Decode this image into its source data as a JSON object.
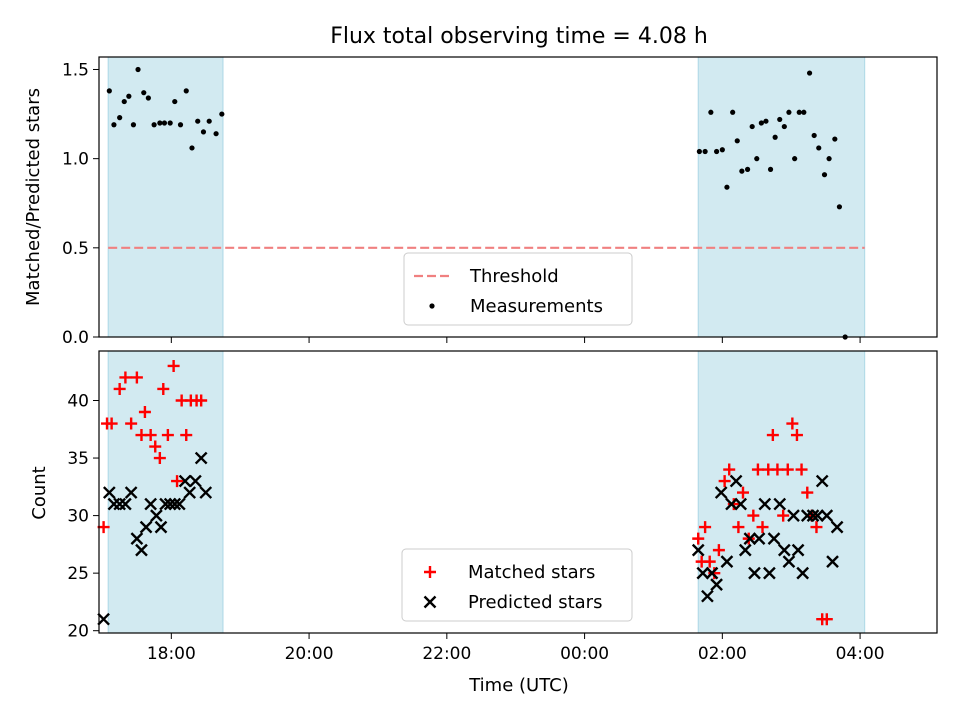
{
  "title": "Flux total observing time = 4.08 h",
  "colors": {
    "band": "#add8e6",
    "threshold": "#f08080",
    "matched": "#ff0000",
    "predicted": "#000000",
    "measurement": "#000000"
  },
  "chart_data": [
    {
      "type": "scatter",
      "xlabel": "",
      "ylabel": "Matched/Predicted stars",
      "ylim": [
        0.0,
        1.57
      ],
      "y_ticks": [
        "0.0",
        "0.5",
        "1.0",
        "1.5"
      ],
      "x_ticks": [
        "18:00",
        "20:00",
        "22:00",
        "00:00",
        "02:00",
        "04:00"
      ],
      "x_ticks_labeled": false,
      "xlim": [
        "16:57",
        "05:07"
      ],
      "grid": false,
      "legend_position": "lower-center",
      "observing_windows": [
        [
          "17:05",
          "18:45"
        ],
        [
          "01:39",
          "04:04"
        ]
      ],
      "threshold": {
        "name": "Threshold",
        "y": 0.5,
        "x_from": "17:05",
        "x_to": "04:04"
      },
      "series": [
        {
          "name": "Measurements",
          "marker": "dot",
          "points": [
            [
              "17:06",
              1.38
            ],
            [
              "17:10",
              1.19
            ],
            [
              "17:15",
              1.23
            ],
            [
              "17:19",
              1.32
            ],
            [
              "17:23",
              1.35
            ],
            [
              "17:27",
              1.19
            ],
            [
              "17:31",
              1.5
            ],
            [
              "17:36",
              1.37
            ],
            [
              "17:40",
              1.34
            ],
            [
              "17:45",
              1.19
            ],
            [
              "17:50",
              1.2
            ],
            [
              "17:54",
              1.2
            ],
            [
              "17:59",
              1.2
            ],
            [
              "18:03",
              1.32
            ],
            [
              "18:08",
              1.19
            ],
            [
              "18:13",
              1.38
            ],
            [
              "18:18",
              1.06
            ],
            [
              "18:23",
              1.21
            ],
            [
              "18:28",
              1.15
            ],
            [
              "18:33",
              1.21
            ],
            [
              "18:39",
              1.14
            ],
            [
              "18:44",
              1.25
            ],
            [
              "01:40",
              1.04
            ],
            [
              "01:45",
              1.04
            ],
            [
              "01:50",
              1.26
            ],
            [
              "01:55",
              1.04
            ],
            [
              "02:00",
              1.05
            ],
            [
              "02:04",
              0.84
            ],
            [
              "02:09",
              1.26
            ],
            [
              "02:13",
              1.1
            ],
            [
              "02:17",
              0.93
            ],
            [
              "02:22",
              0.94
            ],
            [
              "02:26",
              1.18
            ],
            [
              "02:30",
              1.0
            ],
            [
              "02:34",
              1.2
            ],
            [
              "02:38",
              1.21
            ],
            [
              "02:42",
              0.94
            ],
            [
              "02:46",
              1.12
            ],
            [
              "02:50",
              1.22
            ],
            [
              "02:54",
              1.18
            ],
            [
              "02:58",
              1.26
            ],
            [
              "03:03",
              1.0
            ],
            [
              "03:07",
              1.26
            ],
            [
              "03:11",
              1.26
            ],
            [
              "03:16",
              1.48
            ],
            [
              "03:20",
              1.13
            ],
            [
              "03:24",
              1.06
            ],
            [
              "03:29",
              0.91
            ],
            [
              "03:33",
              1.0
            ],
            [
              "03:38",
              1.11
            ],
            [
              "03:42",
              0.73
            ],
            [
              "03:47",
              0.0
            ]
          ]
        }
      ]
    },
    {
      "type": "scatter",
      "xlabel": "Time (UTC)",
      "ylabel": "Count",
      "ylim": [
        19.8,
        44.3
      ],
      "y_ticks": [
        "20",
        "25",
        "30",
        "35",
        "40"
      ],
      "x_ticks": [
        "18:00",
        "20:00",
        "22:00",
        "00:00",
        "02:00",
        "04:00"
      ],
      "xlim": [
        "16:57",
        "05:07"
      ],
      "grid": false,
      "legend_position": "lower-center",
      "observing_windows": [
        [
          "17:05",
          "18:45"
        ],
        [
          "01:39",
          "04:04"
        ]
      ],
      "series": [
        {
          "name": "Matched stars",
          "marker": "plus",
          "points": [
            [
              "17:01",
              29
            ],
            [
              "17:04",
              38
            ],
            [
              "17:08",
              38
            ],
            [
              "17:15",
              41
            ],
            [
              "17:20",
              42
            ],
            [
              "17:25",
              38
            ],
            [
              "17:30",
              42
            ],
            [
              "17:34",
              37
            ],
            [
              "17:37",
              39
            ],
            [
              "17:42",
              37
            ],
            [
              "17:46",
              36
            ],
            [
              "17:50",
              35
            ],
            [
              "17:53",
              41
            ],
            [
              "17:57",
              37
            ],
            [
              "18:02",
              43
            ],
            [
              "18:05",
              33
            ],
            [
              "18:09",
              40
            ],
            [
              "18:13",
              37
            ],
            [
              "18:17",
              40
            ],
            [
              "18:22",
              40
            ],
            [
              "18:26",
              40
            ],
            [
              "01:39",
              28
            ],
            [
              "01:42",
              26
            ],
            [
              "01:45",
              29
            ],
            [
              "01:49",
              26
            ],
            [
              "01:53",
              25
            ],
            [
              "01:57",
              27
            ],
            [
              "02:02",
              33
            ],
            [
              "02:06",
              34
            ],
            [
              "02:10",
              31
            ],
            [
              "02:14",
              29
            ],
            [
              "02:18",
              32
            ],
            [
              "02:23",
              28
            ],
            [
              "02:27",
              30
            ],
            [
              "02:31",
              34
            ],
            [
              "02:35",
              29
            ],
            [
              "02:40",
              34
            ],
            [
              "02:44",
              37
            ],
            [
              "02:48",
              34
            ],
            [
              "02:53",
              30
            ],
            [
              "02:57",
              34
            ],
            [
              "03:01",
              38
            ],
            [
              "03:05",
              37
            ],
            [
              "03:09",
              34
            ],
            [
              "03:14",
              32
            ],
            [
              "03:18",
              30
            ],
            [
              "03:22",
              29
            ],
            [
              "03:27",
              21
            ],
            [
              "03:31",
              21
            ]
          ]
        },
        {
          "name": "Predicted stars",
          "marker": "x",
          "points": [
            [
              "17:01",
              21
            ],
            [
              "17:06",
              32
            ],
            [
              "17:10",
              31
            ],
            [
              "17:15",
              31
            ],
            [
              "17:20",
              31
            ],
            [
              "17:25",
              32
            ],
            [
              "17:30",
              28
            ],
            [
              "17:34",
              27
            ],
            [
              "17:38",
              29
            ],
            [
              "17:42",
              31
            ],
            [
              "17:47",
              30
            ],
            [
              "17:51",
              29
            ],
            [
              "17:55",
              31
            ],
            [
              "17:59",
              31
            ],
            [
              "18:03",
              31
            ],
            [
              "18:07",
              31
            ],
            [
              "18:12",
              33
            ],
            [
              "18:16",
              32
            ],
            [
              "18:21",
              33
            ],
            [
              "18:26",
              35
            ],
            [
              "18:30",
              32
            ],
            [
              "01:39",
              27
            ],
            [
              "01:43",
              25
            ],
            [
              "01:47",
              23
            ],
            [
              "01:51",
              25
            ],
            [
              "01:55",
              24
            ],
            [
              "01:59",
              32
            ],
            [
              "02:04",
              26
            ],
            [
              "02:08",
              31
            ],
            [
              "02:12",
              33
            ],
            [
              "02:16",
              31
            ],
            [
              "02:20",
              27
            ],
            [
              "02:24",
              28
            ],
            [
              "02:28",
              25
            ],
            [
              "02:32",
              28
            ],
            [
              "02:37",
              31
            ],
            [
              "02:41",
              25
            ],
            [
              "02:45",
              28
            ],
            [
              "02:50",
              31
            ],
            [
              "02:54",
              27
            ],
            [
              "02:58",
              26
            ],
            [
              "03:02",
              30
            ],
            [
              "03:06",
              27
            ],
            [
              "03:10",
              25
            ],
            [
              "03:14",
              30
            ],
            [
              "03:19",
              30
            ],
            [
              "03:23",
              30
            ],
            [
              "03:27",
              33
            ],
            [
              "03:31",
              30
            ],
            [
              "03:36",
              26
            ],
            [
              "03:40",
              29
            ]
          ]
        }
      ]
    }
  ]
}
